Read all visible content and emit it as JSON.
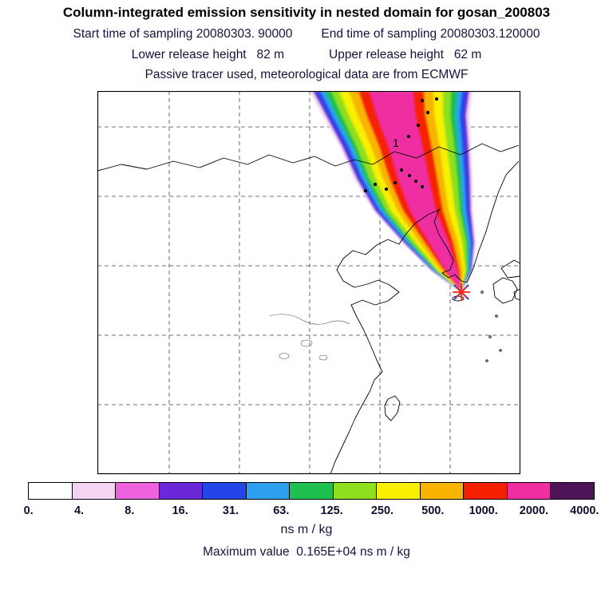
{
  "header": {
    "title": "Column-integrated emission sensitivity in nested domain for gosan_200803",
    "start_time_label": "Start time of sampling 20080303. 90000",
    "end_time_label": "End time of sampling 20080303.120000",
    "lower_height_label": "Lower release height   82 m",
    "upper_height_label": "Upper release height   62 m",
    "tracer_note": "Passive tracer used, meteorological data are from ECMWF"
  },
  "map": {
    "region_label": "1",
    "station_dots": [
      [
        407,
        12
      ],
      [
        425,
        10
      ],
      [
        414,
        27
      ],
      [
        402,
        43
      ],
      [
        390,
        57
      ],
      [
        381,
        99
      ],
      [
        391,
        106
      ],
      [
        399,
        113
      ],
      [
        407,
        120
      ],
      [
        373,
        115
      ],
      [
        362,
        123
      ],
      [
        348,
        117
      ],
      [
        336,
        125
      ]
    ]
  },
  "colorbar": {
    "unit": "ns m / kg",
    "tick_labels": [
      "0.",
      "4.",
      "8.",
      "16.",
      "31.",
      "63.",
      "125.",
      "250.",
      "500.",
      "1000.",
      "2000.",
      "4000."
    ],
    "colors": [
      "#ffffff",
      "#f3d4f2",
      "#ee63dd",
      "#6a28d8",
      "#2446e8",
      "#2f9ff0",
      "#1fc050",
      "#8ee01e",
      "#f8f000",
      "#f8b400",
      "#f52000",
      "#ef2fa2",
      "#4d1458"
    ]
  },
  "footer": {
    "max_value_label": "Maximum value  0.165E+04 ns m / kg"
  },
  "chart_data": {
    "type": "heatmap",
    "title": "Column-integrated emission sensitivity in nested domain for gosan_200803",
    "start_time": "20080303. 90000",
    "end_time": "20080303.120000",
    "lower_release_height": "82 m",
    "upper_release_height": "62 m",
    "meteo_note": "Passive tracer used, meteorological data are from ECMWF",
    "unit": "ns m / kg",
    "levels": [
      0,
      4,
      8,
      16,
      31,
      63,
      125,
      250,
      500,
      1000,
      2000,
      4000
    ],
    "max_value": "0.165E+04 ns m / kg",
    "receptor_site": "gosan_200803",
    "plume_annotation": "1",
    "legend_position": "bottom",
    "grid": "dashed"
  }
}
